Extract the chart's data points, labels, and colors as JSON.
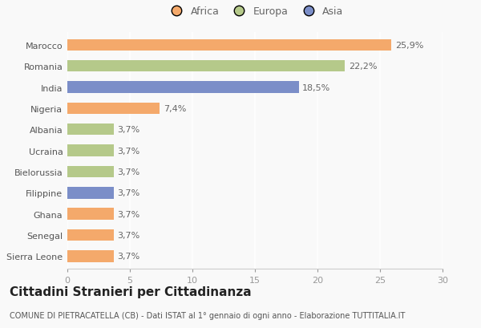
{
  "countries": [
    "Marocco",
    "Romania",
    "India",
    "Nigeria",
    "Albania",
    "Ucraina",
    "Bielorussia",
    "Filippine",
    "Ghana",
    "Senegal",
    "Sierra Leone"
  ],
  "values": [
    25.9,
    22.2,
    18.5,
    7.4,
    3.7,
    3.7,
    3.7,
    3.7,
    3.7,
    3.7,
    3.7
  ],
  "continents": [
    "Africa",
    "Europa",
    "Asia",
    "Africa",
    "Europa",
    "Europa",
    "Europa",
    "Asia",
    "Africa",
    "Africa",
    "Africa"
  ],
  "colors": {
    "Africa": "#F4A96B",
    "Europa": "#B5C98A",
    "Asia": "#7B8EC8"
  },
  "legend_order": [
    "Africa",
    "Europa",
    "Asia"
  ],
  "xlim": [
    0,
    30
  ],
  "xticks": [
    0,
    5,
    10,
    15,
    20,
    25,
    30
  ],
  "title": "Cittadini Stranieri per Cittadinanza",
  "subtitle": "COMUNE DI PIETRACATELLA (CB) - Dati ISTAT al 1° gennaio di ogni anno - Elaborazione TUTTITALIA.IT",
  "background_color": "#f9f9f9",
  "bar_height": 0.55,
  "title_fontsize": 11,
  "subtitle_fontsize": 7,
  "label_fontsize": 8,
  "tick_fontsize": 8,
  "legend_fontsize": 9
}
